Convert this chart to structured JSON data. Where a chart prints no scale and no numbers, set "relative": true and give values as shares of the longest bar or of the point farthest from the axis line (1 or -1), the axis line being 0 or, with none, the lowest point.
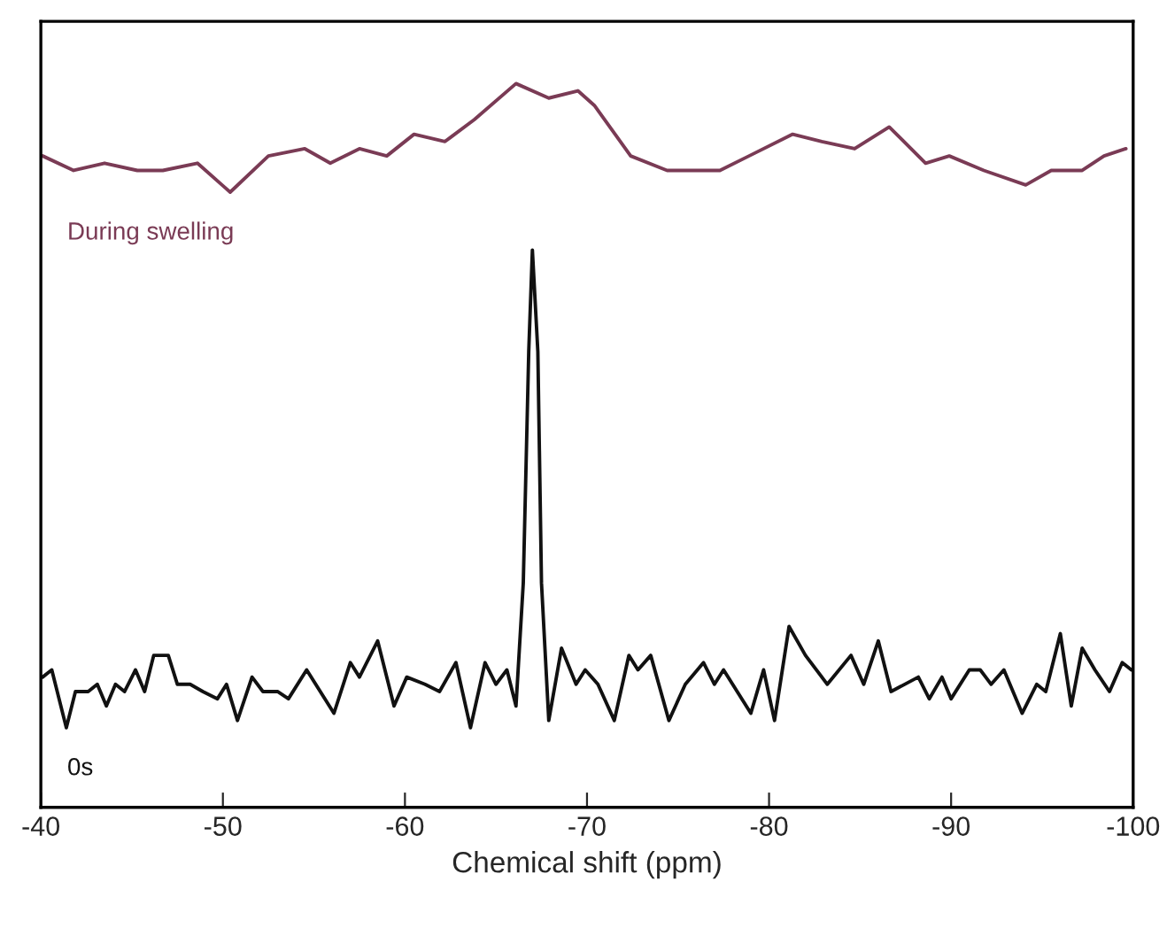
{
  "chart_data": {
    "type": "line",
    "relative": true,
    "xlabel": "Chemical shift (ppm)",
    "xlim": [
      -40,
      -100
    ],
    "xticks": [
      -40,
      -50,
      -60,
      -70,
      -80,
      -90,
      -100
    ],
    "grid": false,
    "legend": false,
    "marker": "none",
    "line_style": "solid",
    "series": [
      {
        "name": "During swelling",
        "color": "#7a3b55",
        "x": [
          -40.1,
          -41.8,
          -43.5,
          -45.3,
          -46.7,
          -48.6,
          -50.4,
          -52.5,
          -54.5,
          -55.9,
          -57.5,
          -59.0,
          -60.5,
          -62.2,
          -63.8,
          -66.1,
          -67.9,
          -69.5,
          -70.4,
          -72.4,
          -74.4,
          -76.0,
          -77.3,
          -78.9,
          -81.3,
          -82.9,
          -84.7,
          -86.6,
          -88.6,
          -89.9,
          -91.8,
          -94.1,
          -95.5,
          -97.2,
          -98.4,
          -99.6
        ],
        "values": [
          0.9,
          0.88,
          0.89,
          0.88,
          0.88,
          0.89,
          0.85,
          0.9,
          0.91,
          0.89,
          0.91,
          0.9,
          0.93,
          0.92,
          0.95,
          1.0,
          0.98,
          0.99,
          0.97,
          0.9,
          0.88,
          0.88,
          0.88,
          0.9,
          0.93,
          0.92,
          0.91,
          0.94,
          0.89,
          0.9,
          0.88,
          0.86,
          0.88,
          0.88,
          0.9,
          0.91
        ]
      },
      {
        "name": "0s",
        "color": "#111111",
        "x": [
          -40.1,
          -40.6,
          -41.4,
          -41.9,
          -42.6,
          -43.1,
          -43.6,
          -44.1,
          -44.6,
          -45.2,
          -45.7,
          -46.2,
          -47.0,
          -47.5,
          -48.2,
          -48.9,
          -49.7,
          -50.2,
          -50.8,
          -51.6,
          -52.2,
          -53.0,
          -53.6,
          -54.6,
          -56.1,
          -57.0,
          -57.5,
          -58.5,
          -59.4,
          -60.1,
          -61.1,
          -61.9,
          -62.8,
          -63.6,
          -64.4,
          -65.0,
          -65.6,
          -66.1,
          -66.5,
          -66.8,
          -67.0,
          -67.3,
          -67.5,
          -67.9,
          -68.6,
          -69.4,
          -69.9,
          -70.6,
          -71.5,
          -72.3,
          -72.8,
          -73.5,
          -74.5,
          -75.4,
          -76.4,
          -77.0,
          -77.5,
          -79.0,
          -79.7,
          -80.3,
          -81.1,
          -82.0,
          -83.2,
          -84.5,
          -85.2,
          -86.0,
          -86.7,
          -88.2,
          -88.8,
          -89.5,
          -90.0,
          -91.0,
          -91.6,
          -92.2,
          -92.9,
          -93.9,
          -94.7,
          -95.2,
          -96.0,
          -96.6,
          -97.2,
          -97.9,
          -98.7,
          -99.4,
          -99.9
        ],
        "values": [
          0.18,
          0.19,
          0.11,
          0.16,
          0.16,
          0.17,
          0.14,
          0.17,
          0.16,
          0.19,
          0.16,
          0.21,
          0.21,
          0.17,
          0.17,
          0.16,
          0.15,
          0.17,
          0.12,
          0.18,
          0.16,
          0.16,
          0.15,
          0.19,
          0.13,
          0.2,
          0.18,
          0.23,
          0.14,
          0.18,
          0.17,
          0.16,
          0.2,
          0.11,
          0.2,
          0.17,
          0.19,
          0.14,
          0.31,
          0.63,
          0.77,
          0.63,
          0.31,
          0.12,
          0.22,
          0.17,
          0.19,
          0.17,
          0.12,
          0.21,
          0.19,
          0.21,
          0.12,
          0.17,
          0.2,
          0.17,
          0.19,
          0.13,
          0.19,
          0.12,
          0.25,
          0.21,
          0.17,
          0.21,
          0.17,
          0.23,
          0.16,
          0.18,
          0.15,
          0.18,
          0.15,
          0.19,
          0.19,
          0.17,
          0.19,
          0.13,
          0.17,
          0.16,
          0.24,
          0.14,
          0.22,
          0.19,
          0.16,
          0.2,
          0.19
        ]
      }
    ]
  }
}
